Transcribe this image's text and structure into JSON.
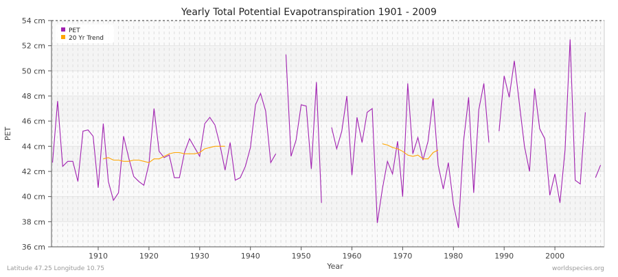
{
  "chart_data": {
    "type": "line",
    "title": "Yearly Total Potential Evapotranspiration 1901 - 2009",
    "xlabel": "Year",
    "ylabel": "PET",
    "ylim": [
      36,
      54
    ],
    "xlim": [
      1901,
      2009
    ],
    "y_ticks": [
      "36 cm",
      "38 cm",
      "40 cm",
      "42 cm",
      "44 cm",
      "46 cm",
      "48 cm",
      "50 cm",
      "52 cm",
      "54 cm"
    ],
    "x_ticks": [
      "1910",
      "1920",
      "1930",
      "1940",
      "1950",
      "1960",
      "1970",
      "1980",
      "1990",
      "2000"
    ],
    "grid": true,
    "legend_position": "top-left",
    "series": [
      {
        "name": "PET",
        "color": "#a020b0",
        "start_year": 1901,
        "values": [
          42.7,
          47.6,
          42.4,
          42.8,
          42.8,
          41.2,
          45.2,
          45.3,
          44.8,
          40.7,
          45.8,
          41.2,
          39.7,
          40.3,
          44.8,
          43.1,
          41.6,
          41.2,
          40.9,
          42.6,
          47.0,
          43.6,
          43.1,
          43.3,
          41.5,
          41.5,
          43.5,
          44.6,
          43.9,
          43.2,
          45.8,
          46.3,
          45.7,
          44.1,
          42.1,
          44.3,
          41.3,
          41.5,
          42.4,
          43.9,
          47.3,
          48.2,
          46.8,
          42.7,
          43.4,
          null,
          51.3,
          43.2,
          44.5,
          47.3,
          47.2,
          42.2,
          49.1,
          39.5,
          null,
          45.5,
          43.8,
          45.2,
          48.0,
          41.7,
          46.3,
          44.3,
          46.7,
          47.0,
          37.9,
          40.6,
          42.8,
          41.8,
          44.4,
          40.0,
          49.0,
          43.4,
          44.7,
          42.9,
          44.4,
          47.8,
          42.5,
          40.6,
          42.7,
          39.4,
          37.5,
          44.4,
          47.9,
          40.3,
          46.9,
          49.0,
          44.3,
          null,
          45.2,
          49.6,
          47.9,
          50.8,
          47.4,
          44.0,
          42.0,
          48.6,
          45.4,
          44.6,
          40.1,
          41.8,
          39.5,
          43.7,
          52.5,
          41.3,
          41.0,
          46.7,
          null,
          41.5,
          42.5
        ]
      },
      {
        "name": "20 Yr Trend",
        "color": "#ffa500",
        "segments": [
          {
            "start_year": 1911,
            "values": [
              43.0,
              43.1,
              42.9,
              42.9,
              42.8,
              42.8,
              42.9,
              42.9,
              42.8,
              42.7,
              43.0,
              43.0,
              43.2,
              43.4,
              43.5,
              43.5,
              43.4,
              43.4,
              43.4,
              43.5,
              43.8,
              43.9,
              44.0,
              44.0,
              44.0
            ]
          },
          {
            "start_year": 1966,
            "values": [
              44.2,
              44.1,
              43.9,
              43.8,
              43.6,
              43.3,
              43.2,
              43.3,
              43.0,
              43.0,
              43.5,
              43.7
            ]
          }
        ]
      }
    ]
  },
  "footer": {
    "location": "Latitude 47.25 Longitude 10.75",
    "source": "worldspecies.org"
  }
}
